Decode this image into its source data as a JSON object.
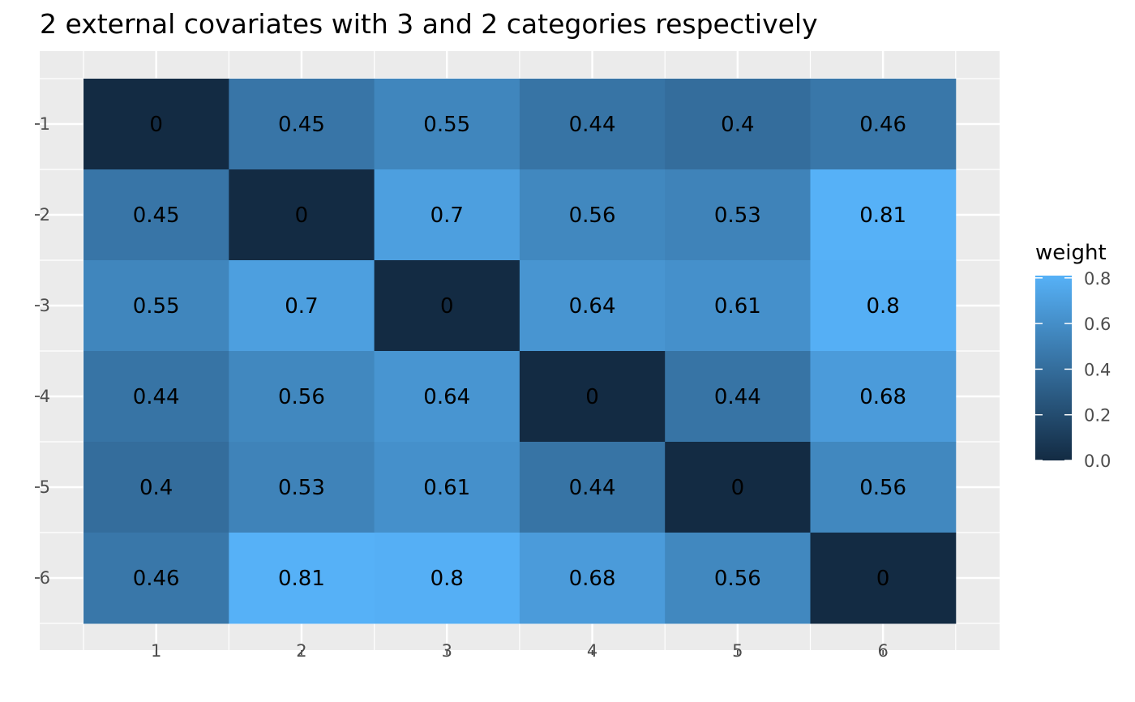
{
  "chart_data": {
    "type": "heatmap",
    "title": "2 external covariates with 3 and 2 categories respectively",
    "x_categories": [
      "1",
      "2",
      "3",
      "4",
      "5",
      "6"
    ],
    "y_categories": [
      "1",
      "2",
      "3",
      "4",
      "5",
      "6"
    ],
    "matrix": [
      [
        0,
        0.45,
        0.55,
        0.44,
        0.4,
        0.46
      ],
      [
        0.45,
        0,
        0.7,
        0.56,
        0.53,
        0.81
      ],
      [
        0.55,
        0.7,
        0,
        0.64,
        0.61,
        0.8
      ],
      [
        0.44,
        0.56,
        0.64,
        0,
        0.44,
        0.68
      ],
      [
        0.4,
        0.53,
        0.61,
        0.44,
        0,
        0.56
      ],
      [
        0.46,
        0.81,
        0.8,
        0.68,
        0.56,
        0
      ]
    ],
    "cell_labels": [
      [
        "0",
        "0.45",
        "0.55",
        "0.44",
        "0.4",
        "0.46"
      ],
      [
        "0.45",
        "0",
        "0.7",
        "0.56",
        "0.53",
        "0.81"
      ],
      [
        "0.55",
        "0.7",
        "0",
        "0.64",
        "0.61",
        "0.8"
      ],
      [
        "0.44",
        "0.56",
        "0.64",
        "0",
        "0.44",
        "0.68"
      ],
      [
        "0.4",
        "0.53",
        "0.61",
        "0.44",
        "0",
        "0.56"
      ],
      [
        "0.46",
        "0.81",
        "0.8",
        "0.68",
        "0.56",
        "0"
      ]
    ],
    "legend": {
      "title": "weight",
      "placement": "right",
      "breaks": [
        0.0,
        0.2,
        0.4,
        0.6,
        0.8
      ],
      "break_labels": [
        "0.0",
        "0.2",
        "0.4",
        "0.6",
        "0.8"
      ],
      "range": [
        0,
        0.81
      ],
      "color_low": "#132B43",
      "color_high": "#56B1F7"
    },
    "grid": true,
    "panel_background": "#EBEBEB"
  }
}
